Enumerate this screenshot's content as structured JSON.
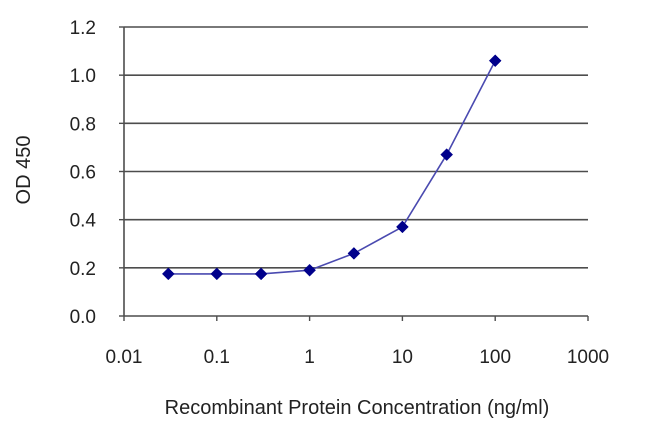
{
  "chart_data": {
    "type": "line",
    "title": "",
    "xlabel": "Recombinant Protein Concentration (ng/ml)",
    "ylabel": "OD 450",
    "x_scale": "log",
    "xlim": [
      0.01,
      1000
    ],
    "ylim": [
      0.0,
      1.2
    ],
    "grid": "horizontal",
    "legend": "none",
    "x_ticks": [
      "0.01",
      "0.1",
      "1",
      "10",
      "100",
      "1000"
    ],
    "y_ticks": [
      "0.0",
      "0.2",
      "0.4",
      "0.6",
      "0.8",
      "1.0",
      "1.2"
    ],
    "series": [
      {
        "x": [
          0.03,
          0.1,
          0.3,
          1,
          3,
          10,
          30,
          100
        ],
        "y": [
          0.175,
          0.175,
          0.175,
          0.19,
          0.26,
          0.37,
          0.67,
          1.06
        ]
      }
    ],
    "colors": {
      "series": "#4A4AB0",
      "marker": "#00008B",
      "grid": "#4d4d4d",
      "axis": "#4d4d4d"
    }
  }
}
